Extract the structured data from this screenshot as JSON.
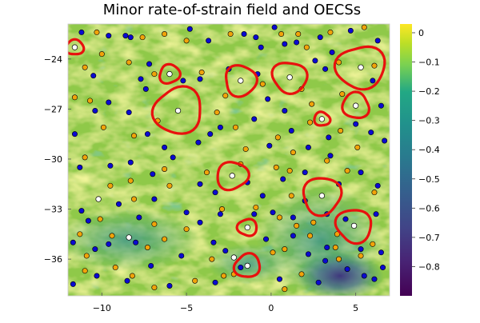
{
  "chart_data": {
    "type": "heatmap",
    "title": "Minor rate-of-strain field and OECSs",
    "xlabel": "",
    "ylabel": "",
    "xlim": [
      -12,
      7
    ],
    "ylim": [
      -38.2,
      -21.9
    ],
    "x_ticks": [
      -10,
      -5,
      0,
      5
    ],
    "x_tick_labels": [
      "−10",
      "−5",
      "0",
      "5"
    ],
    "y_ticks": [
      -24,
      -27,
      -30,
      -33,
      -36
    ],
    "y_tick_labels": [
      "−24",
      "−27",
      "−30",
      "−33",
      "−36"
    ],
    "colorbar": {
      "range": [
        -0.9,
        0.03
      ],
      "ticks": [
        0.0,
        -0.1,
        -0.2,
        -0.3,
        -0.4,
        -0.5,
        -0.6,
        -0.7,
        -0.8
      ],
      "tick_labels": [
        "0",
        "−0.1",
        "−0.2",
        "−0.3",
        "−0.4",
        "−0.5",
        "−0.6",
        "−0.7",
        "−0.8"
      ],
      "colormap": "viridis"
    },
    "colors": {
      "contour": "#e8110e",
      "center": "#ffffff",
      "blue_points": "#0a0ad0",
      "orange_points": "#f0a30a"
    },
    "oecs": [
      {
        "cx": -11.6,
        "cy": -23.3,
        "r": 0.5
      },
      {
        "cx": -6.0,
        "cy": -24.9,
        "r": 0.6
      },
      {
        "cx": -1.8,
        "cy": -25.3,
        "r": 0.95
      },
      {
        "cx": 1.1,
        "cy": -25.1,
        "r": 1.0
      },
      {
        "cx": 5.3,
        "cy": -24.5,
        "r": 1.4
      },
      {
        "cx": -5.5,
        "cy": -27.1,
        "r": 1.45
      },
      {
        "cx": 5.0,
        "cy": -26.8,
        "r": 0.8
      },
      {
        "cx": 3.0,
        "cy": -27.6,
        "r": 0.45
      },
      {
        "cx": -2.3,
        "cy": -31.0,
        "r": 0.9
      },
      {
        "cx": 3.0,
        "cy": -32.2,
        "r": 1.15
      },
      {
        "cx": 4.9,
        "cy": -34.0,
        "r": 1.05
      },
      {
        "cx": -1.4,
        "cy": -34.1,
        "r": 0.55
      },
      {
        "cx": -1.4,
        "cy": -36.4,
        "r": 0.75
      }
    ],
    "extra_white_points": [
      [
        -10.2,
        -32.4
      ],
      [
        -8.4,
        -34.7
      ],
      [
        -2.2,
        -35.9
      ]
    ],
    "blue_points": [
      [
        -11.2,
        -22.4
      ],
      [
        -9.6,
        -22.6
      ],
      [
        -8.6,
        -22.6
      ],
      [
        -8.3,
        -22.7
      ],
      [
        -4.8,
        -22.2
      ],
      [
        -3.7,
        -22.9
      ],
      [
        -1.6,
        -22.5
      ],
      [
        -0.9,
        -22.7
      ],
      [
        -0.6,
        -23.3
      ],
      [
        0.2,
        -22.1
      ],
      [
        0.8,
        -23.1
      ],
      [
        1.5,
        -23.0
      ],
      [
        2.9,
        -22.7
      ],
      [
        4.7,
        -22.3
      ],
      [
        6.3,
        -22.9
      ],
      [
        -10.5,
        -25.0
      ],
      [
        -7.2,
        -24.3
      ],
      [
        -7.7,
        -25.2
      ],
      [
        -7.4,
        -25.8
      ],
      [
        -5.2,
        -25.3
      ],
      [
        -4.2,
        -25.2
      ],
      [
        -2.5,
        -24.6
      ],
      [
        -0.8,
        -24.9
      ],
      [
        -0.2,
        -26.4
      ],
      [
        0.8,
        -27.1
      ],
      [
        2.6,
        -24.1
      ],
      [
        3.2,
        -24.6
      ],
      [
        3.6,
        -23.6
      ],
      [
        6.0,
        -25.3
      ],
      [
        6.5,
        -26.8
      ],
      [
        -10.4,
        -27.1
      ],
      [
        -9.6,
        -26.6
      ],
      [
        -8.4,
        -27.2
      ],
      [
        -11.6,
        -28.5
      ],
      [
        -7.3,
        -28.5
      ],
      [
        -6.3,
        -29.3
      ],
      [
        -4.3,
        -29.0
      ],
      [
        -3.6,
        -28.5
      ],
      [
        -3.0,
        -28.1
      ],
      [
        -1.0,
        -27.6
      ],
      [
        -0.1,
        -29.2
      ],
      [
        1.2,
        -28.3
      ],
      [
        2.2,
        -29.3
      ],
      [
        3.4,
        -28.7
      ],
      [
        3.5,
        -29.8
      ],
      [
        5.0,
        -27.9
      ],
      [
        5.9,
        -28.4
      ],
      [
        6.7,
        -28.9
      ],
      [
        -11.3,
        -30.5
      ],
      [
        -9.5,
        -30.4
      ],
      [
        -8.3,
        -30.2
      ],
      [
        -7.0,
        -30.9
      ],
      [
        -5.8,
        -29.9
      ],
      [
        -4.2,
        -31.5
      ],
      [
        -3.3,
        -32.0
      ],
      [
        -1.4,
        -31.4
      ],
      [
        -0.5,
        -32.2
      ],
      [
        0.7,
        -31.2
      ],
      [
        2.0,
        -30.8
      ],
      [
        4.0,
        -31.5
      ],
      [
        5.3,
        -30.8
      ],
      [
        6.3,
        -31.6
      ],
      [
        -11.2,
        -33.1
      ],
      [
        -10.8,
        -33.7
      ],
      [
        -9.0,
        -32.7
      ],
      [
        -7.8,
        -33.5
      ],
      [
        -6.9,
        -32.4
      ],
      [
        -5.0,
        -33.2
      ],
      [
        -4.2,
        -33.8
      ],
      [
        -3.0,
        -33.3
      ],
      [
        -1.0,
        -33.3
      ],
      [
        0.1,
        -33.2
      ],
      [
        1.3,
        -33.5
      ],
      [
        2.0,
        -32.5
      ],
      [
        3.3,
        -33.3
      ],
      [
        4.4,
        -33.6
      ],
      [
        6.2,
        -33.3
      ],
      [
        -11.7,
        -35.0
      ],
      [
        -10.4,
        -35.4
      ],
      [
        -9.6,
        -35.1
      ],
      [
        -8.0,
        -35.0
      ],
      [
        -5.3,
        -35.8
      ],
      [
        -3.4,
        -35.0
      ],
      [
        -2.7,
        -35.5
      ],
      [
        -0.3,
        -34.8
      ],
      [
        1.3,
        -34.6
      ],
      [
        2.2,
        -35.7
      ],
      [
        3.3,
        -35.3
      ],
      [
        5.3,
        -35.4
      ],
      [
        6.5,
        -35.6
      ],
      [
        -11.7,
        -37.5
      ],
      [
        -10.3,
        -37.0
      ],
      [
        -8.5,
        -37.3
      ],
      [
        -7.1,
        -36.4
      ],
      [
        -6.0,
        -37.6
      ],
      [
        -3.3,
        -37.4
      ],
      [
        -1.8,
        -36.5
      ],
      [
        0.5,
        -37.2
      ],
      [
        2.8,
        -37.4
      ],
      [
        3.2,
        -36.1
      ],
      [
        4.5,
        -36.6
      ],
      [
        5.5,
        -37.0
      ],
      [
        6.1,
        -37.2
      ],
      [
        6.6,
        -36.5
      ]
    ],
    "orange_points": [
      [
        -10.3,
        -22.4
      ],
      [
        -7.6,
        -22.7
      ],
      [
        -6.3,
        -22.5
      ],
      [
        -5.0,
        -22.9
      ],
      [
        -2.4,
        -22.5
      ],
      [
        0.6,
        -22.5
      ],
      [
        1.6,
        -22.5
      ],
      [
        2.1,
        -23.3
      ],
      [
        3.5,
        -22.4
      ],
      [
        5.5,
        -22.1
      ],
      [
        -11.0,
        -24.5
      ],
      [
        -10.0,
        -23.7
      ],
      [
        -8.4,
        -24.2
      ],
      [
        -6.9,
        -24.9
      ],
      [
        -4.1,
        -24.8
      ],
      [
        -2.7,
        -26.2
      ],
      [
        -0.5,
        -25.5
      ],
      [
        1.8,
        -25.8
      ],
      [
        2.4,
        -26.7
      ],
      [
        4.0,
        -24.2
      ],
      [
        4.2,
        -26.1
      ],
      [
        6.1,
        -24.4
      ],
      [
        -11.6,
        -26.3
      ],
      [
        -10.7,
        -26.5
      ],
      [
        -9.9,
        -28.1
      ],
      [
        -8.1,
        -28.6
      ],
      [
        -6.7,
        -27.7
      ],
      [
        -3.2,
        -27.2
      ],
      [
        -2.1,
        -28.1
      ],
      [
        -1.5,
        -29.4
      ],
      [
        0.4,
        -28.7
      ],
      [
        1.3,
        -29.6
      ],
      [
        2.3,
        -27.8
      ],
      [
        4.1,
        -28.3
      ],
      [
        5.1,
        -29.3
      ],
      [
        -11.0,
        -29.9
      ],
      [
        -9.5,
        -31.6
      ],
      [
        -8.3,
        -31.3
      ],
      [
        -6.3,
        -30.6
      ],
      [
        -6.0,
        -31.6
      ],
      [
        -3.8,
        -30.8
      ],
      [
        -1.8,
        -30.3
      ],
      [
        0.3,
        -30.5
      ],
      [
        1.1,
        -30.7
      ],
      [
        3.3,
        -30.1
      ],
      [
        4.5,
        -30.7
      ],
      [
        -10.1,
        -33.6
      ],
      [
        -8.1,
        -32.4
      ],
      [
        -6.9,
        -33.9
      ],
      [
        -5.0,
        -34.2
      ],
      [
        -2.9,
        -33.0
      ],
      [
        -0.9,
        -32.9
      ],
      [
        0.5,
        -33.5
      ],
      [
        1.2,
        -32.2
      ],
      [
        2.5,
        -33.8
      ],
      [
        3.9,
        -34.5
      ],
      [
        6.1,
        -32.0
      ],
      [
        -11.3,
        -34.5
      ],
      [
        -10.9,
        -35.8
      ],
      [
        -9.4,
        -34.6
      ],
      [
        -7.3,
        -35.3
      ],
      [
        -6.3,
        -34.8
      ],
      [
        -3.5,
        -36.0
      ],
      [
        -2.2,
        -36.9
      ],
      [
        0.1,
        -35.6
      ],
      [
        0.8,
        -35.4
      ],
      [
        1.5,
        -34.0
      ],
      [
        2.3,
        -34.6
      ],
      [
        3.8,
        -35.3
      ],
      [
        5.3,
        -35.8
      ],
      [
        -11.0,
        -36.7
      ],
      [
        -9.2,
        -36.5
      ],
      [
        -8.2,
        -37.0
      ],
      [
        -6.9,
        -37.7
      ],
      [
        -4.5,
        -37.3
      ],
      [
        -2.8,
        -37.0
      ],
      [
        0.8,
        -37.8
      ],
      [
        1.8,
        -36.9
      ],
      [
        4.0,
        -36.0
      ],
      [
        6.0,
        -35.1
      ]
    ]
  }
}
